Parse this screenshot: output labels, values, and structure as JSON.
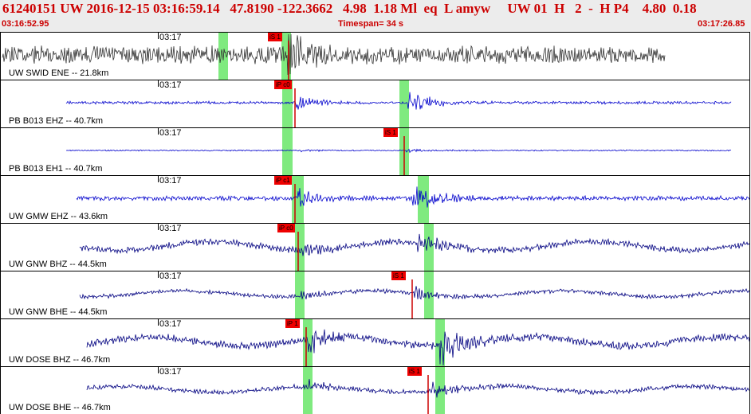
{
  "header": {
    "title_line": "61240151 UW 2016-12-15 03:16:59.14   47.8190 -122.3662   4.98  1.18 Ml  eq  L amyw     UW 01  H   2  -  H P4    4.80  0.18",
    "start_time": "03:16:52.95",
    "timespan": "Timespan=  34 s",
    "end_time": "03:17:26.85"
  },
  "colors": {
    "header_text": "#cc0000",
    "pick": "#ee0000",
    "window": "#7fea7f"
  },
  "panels": [
    {
      "time_tick": "03:17",
      "label": "UW SWID ENE -- 21.8km",
      "picks": [
        "iS 1"
      ],
      "color": "#333333"
    },
    {
      "time_tick": "03:17",
      "label": "PB B013 EHZ -- 40.7km",
      "picks": [
        "iP c0"
      ],
      "color": "#0000cc"
    },
    {
      "time_tick": "03:17",
      "label": "PB B013 EH1 -- 40.7km",
      "picks": [
        "iS 1"
      ],
      "color": "#0000cc"
    },
    {
      "time_tick": "03:17",
      "label": "UW GMW EHZ -- 43.6km",
      "picks": [
        "iP c1"
      ],
      "color": "#0000cc"
    },
    {
      "time_tick": "03:17",
      "label": "UW GNW BHZ -- 44.5km",
      "picks": [
        "iP c0"
      ],
      "color": "#000080"
    },
    {
      "time_tick": "03:17",
      "label": "UW GNW BHE -- 44.5km",
      "picks": [
        "iS 1"
      ],
      "color": "#000080"
    },
    {
      "time_tick": "03:17",
      "label": "UW DOSE BHZ -- 46.7km",
      "picks": [
        "iP 1"
      ],
      "color": "#000080"
    },
    {
      "time_tick": "03:17",
      "label": "UW DOSE BHE -- 46.7km",
      "picks": [
        "iS 1"
      ],
      "color": "#000080"
    }
  ]
}
